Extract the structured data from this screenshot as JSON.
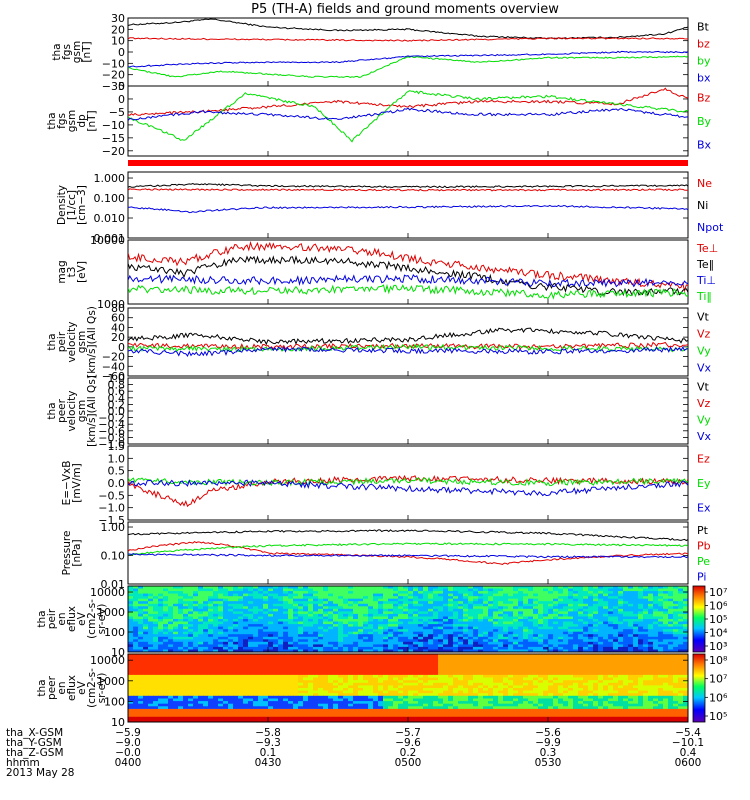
{
  "title": "P5 (TH-A) fields and ground moments overview",
  "colors": {
    "black": "#000000",
    "red": "#e00000",
    "green": "#00dd00",
    "blue": "#0000e0"
  },
  "panels": [
    {
      "id": "p1",
      "ylabel": [
        "tha",
        "fgs",
        "gsm",
        "[nT]"
      ],
      "ticks": [
        "30",
        "20",
        "10",
        "0",
        "−10",
        "−20",
        "−30"
      ],
      "log": false,
      "ylim": [
        -30,
        30
      ],
      "legend": [
        {
          "label": "Bt",
          "color": "#000000"
        },
        {
          "label": "bz",
          "color": "#e00000"
        },
        {
          "label": "by",
          "color": "#00dd00"
        },
        {
          "label": "bx",
          "color": "#0000e0"
        }
      ]
    },
    {
      "id": "p2",
      "ylabel": [
        "tha",
        "fgs",
        "gsm",
        "dp",
        "[nT]"
      ],
      "ticks": [
        "5",
        "0",
        "−5",
        "−10",
        "−15",
        "−20"
      ],
      "log": false,
      "ylim": [
        -22,
        5
      ],
      "legend": [
        {
          "label": "Bz",
          "color": "#e00000"
        },
        {
          "label": "By",
          "color": "#00dd00"
        },
        {
          "label": "Bx",
          "color": "#0000e0"
        }
      ]
    },
    {
      "id": "p3",
      "ylabel": [
        "Density",
        "[1/cc]",
        "[cm−3]"
      ],
      "ticks": [
        "1.000",
        "0.100",
        "0.010",
        "0.001"
      ],
      "log": true,
      "ylim": [
        0.001,
        2
      ],
      "legend": [
        {
          "label": "Ne",
          "color": "#e00000"
        },
        {
          "label": "Ni",
          "color": "#000000"
        },
        {
          "label": "Npot",
          "color": "#0000e0"
        }
      ]
    },
    {
      "id": "p4",
      "ylabel": [
        "mag",
        "t3",
        "[eV]"
      ],
      "ticks": [
        "10000",
        "1000"
      ],
      "log": true,
      "ylim": [
        1000,
        10000
      ],
      "legend": [
        {
          "label": "Te⊥",
          "color": "#e00000"
        },
        {
          "label": "Te‖",
          "color": "#000000"
        },
        {
          "label": "Ti⊥",
          "color": "#0000e0"
        },
        {
          "label": "Ti‖",
          "color": "#00dd00"
        }
      ]
    },
    {
      "id": "p5",
      "ylabel": [
        "tha",
        "peir",
        "velocity",
        "gsm",
        "[km/s](All Qs)"
      ],
      "ticks": [
        "80",
        "60",
        "40",
        "20",
        "0",
        "−20",
        "−40",
        "−60"
      ],
      "log": false,
      "ylim": [
        -60,
        80
      ],
      "legend": [
        {
          "label": "Vt",
          "color": "#000000"
        },
        {
          "label": "Vz",
          "color": "#e00000"
        },
        {
          "label": "Vy",
          "color": "#00dd00"
        },
        {
          "label": "Vx",
          "color": "#0000e0"
        }
      ]
    },
    {
      "id": "p6",
      "ylabel": [
        "tha",
        "peer",
        "velocity",
        "gsm",
        "[km/s](All Qs)"
      ],
      "ticks": [
        "1.0",
        "0.8",
        "0.6",
        "0.4",
        "0.2",
        "0.0",
        "−0.2",
        "−0.4",
        "−0.6",
        "−0.8",
        "−1.0"
      ],
      "log": false,
      "ylim": [
        -1,
        1
      ],
      "legend": [
        {
          "label": "Vt",
          "color": "#000000"
        },
        {
          "label": "Vz",
          "color": "#e00000"
        },
        {
          "label": "Vy",
          "color": "#00dd00"
        },
        {
          "label": "Vx",
          "color": "#0000e0"
        }
      ]
    },
    {
      "id": "p7",
      "ylabel": [
        "E=−VxB",
        "[mV/m]"
      ],
      "ticks": [
        "1.5",
        "1.0",
        "0.5",
        "0.0",
        "−0.5",
        "−1.0",
        "−1.5"
      ],
      "log": false,
      "ylim": [
        -1.5,
        1.5
      ],
      "legend": [
        {
          "label": "Ez",
          "color": "#e00000"
        },
        {
          "label": "Ey",
          "color": "#00dd00"
        },
        {
          "label": "Ex",
          "color": "#0000e0"
        }
      ]
    },
    {
      "id": "p8",
      "ylabel": [
        "Pressure",
        "[nPa]"
      ],
      "ticks": [
        "1.00",
        "0.10",
        "0.01"
      ],
      "log": true,
      "ylim": [
        0.01,
        1.5
      ],
      "legend": [
        {
          "label": "Pt",
          "color": "#000000"
        },
        {
          "label": "Pb",
          "color": "#e00000"
        },
        {
          "label": "Pe",
          "color": "#00dd00"
        },
        {
          "label": "Pi",
          "color": "#0000e0"
        }
      ]
    },
    {
      "id": "p9",
      "ylabel": [
        "tha",
        "peir",
        "en",
        "eflux",
        "eV",
        "(cm2-s-",
        "sr-eV)"
      ],
      "ticks": [
        "10000",
        "1000",
        "100",
        "10"
      ],
      "log": true,
      "ylim": [
        10,
        20000
      ],
      "cbar": [
        "10⁷",
        "10⁶",
        "10⁵",
        "10⁴",
        "10³"
      ]
    },
    {
      "id": "p10",
      "ylabel": [
        "tha",
        "peer",
        "en",
        "eflux",
        "eV",
        "(cm2-s-",
        "sr-eV)"
      ],
      "ticks": [
        "10000",
        "1000",
        "100",
        "10"
      ],
      "log": true,
      "ylim": [
        10,
        20000
      ],
      "cbar": [
        "10⁸",
        "10⁷",
        "10⁶",
        "10⁵"
      ]
    }
  ],
  "xaxis": {
    "ticks": [
      "0400",
      "0430",
      "0500",
      "0530",
      "0600"
    ],
    "rows": [
      {
        "label": "tha_X-GSM",
        "values": [
          "−5.9",
          "−5.8",
          "−5.7",
          "−5.6",
          "−5.4"
        ]
      },
      {
        "label": "tha_Y-GSM",
        "values": [
          "−9.0",
          "−9.3",
          "−9.6",
          "−9.9",
          "−10.1"
        ]
      },
      {
        "label": "tha_Z-GSM",
        "values": [
          "−0.0",
          "0.1",
          "0.2",
          "0.3",
          "0.4"
        ]
      },
      {
        "label": "hhmm",
        "values": [
          "0400",
          "0430",
          "0500",
          "0530",
          "0600"
        ]
      }
    ],
    "date": "2013 May 28"
  },
  "chart_data": {
    "type": "line",
    "title": "P5 (TH-A) fields and ground moments overview",
    "x_range": [
      "0400",
      "0600"
    ],
    "panels": [
      {
        "id": "p1",
        "series": [
          {
            "name": "Bt",
            "x": [
              "0400",
              "0410",
              "0418",
              "0430",
              "0445",
              "0500",
              "0515",
              "0530",
              "0545",
              "0555",
              "0600"
            ],
            "values": [
              24,
              26,
              29,
              22,
              19,
              20,
              14,
              12,
              13,
              16,
              22
            ]
          },
          {
            "name": "bz",
            "x": [
              "0400",
              "0430",
              "0500",
              "0530",
              "0600"
            ],
            "values": [
              12,
              11,
              10,
              12,
              12
            ]
          },
          {
            "name": "by",
            "x": [
              "0400",
              "0410",
              "0420",
              "0440",
              "0450",
              "0500",
              "0515",
              "0530",
              "0545",
              "0600"
            ],
            "values": [
              -14,
              -22,
              -17,
              -22,
              -22,
              -4,
              -9,
              -5,
              -5,
              -4
            ]
          },
          {
            "name": "bx",
            "x": [
              "0400",
              "0415",
              "0430",
              "0445",
              "0500",
              "0515",
              "0530",
              "0545",
              "0600"
            ],
            "values": [
              -13,
              -10,
              -9,
              -9,
              -4,
              -3,
              -2,
              0,
              0
            ]
          }
        ]
      },
      {
        "id": "p2",
        "series": [
          {
            "name": "Bz",
            "x": [
              "0400",
              "0415",
              "0430",
              "0445",
              "0500",
              "0515",
              "0530",
              "0545",
              "0555",
              "0600"
            ],
            "values": [
              -6,
              -5,
              -3,
              -1,
              -3,
              -1,
              -1,
              -2,
              4,
              0
            ]
          },
          {
            "name": "By",
            "x": [
              "0400",
              "0412",
              "0425",
              "0440",
              "0448",
              "0500",
              "0515",
              "0530",
              "0545",
              "0600"
            ],
            "values": [
              -7,
              -16,
              2,
              -3,
              -16,
              3,
              0,
              1,
              -2,
              -5
            ]
          },
          {
            "name": "Bx",
            "x": [
              "0400",
              "0415",
              "0430",
              "0445",
              "0500",
              "0515",
              "0530",
              "0545",
              "0600"
            ],
            "values": [
              -8,
              -5,
              -6,
              -8,
              -4,
              -6,
              -6,
              -4,
              -7
            ]
          }
        ]
      },
      {
        "id": "p3",
        "series": [
          {
            "name": "Ne",
            "x": [
              "0400",
              "0430",
              "0500",
              "0530",
              "0600"
            ],
            "values": [
              0.27,
              0.26,
              0.25,
              0.25,
              0.26
            ]
          },
          {
            "name": "Ni",
            "x": [
              "0400",
              "0415",
              "0430",
              "0500",
              "0530",
              "0600"
            ],
            "values": [
              0.35,
              0.5,
              0.4,
              0.36,
              0.38,
              0.42
            ]
          },
          {
            "name": "Npot",
            "x": [
              "0400",
              "0413",
              "0430",
              "0500",
              "0530",
              "0600"
            ],
            "values": [
              0.035,
              0.02,
              0.033,
              0.035,
              0.04,
              0.028
            ]
          }
        ]
      },
      {
        "id": "p4",
        "series": [
          {
            "name": "Te⊥",
            "x": [
              "0400",
              "0412",
              "0425",
              "0445",
              "0505",
              "0525",
              "0545",
              "0600"
            ],
            "values": [
              5500,
              4500,
              8000,
              7500,
              4500,
              3000,
              2300,
              1800
            ]
          },
          {
            "name": "Te‖",
            "x": [
              "0400",
              "0412",
              "0425",
              "0445",
              "0505",
              "0525",
              "0545",
              "0600"
            ],
            "values": [
              3800,
              3000,
              5000,
              4700,
              3300,
              2000,
              1500,
              1600
            ]
          },
          {
            "name": "Ti⊥",
            "x": [
              "0400",
              "0430",
              "0500",
              "0530",
              "0600"
            ],
            "values": [
              2500,
              2300,
              2500,
              2100,
              2200
            ]
          },
          {
            "name": "Ti‖",
            "x": [
              "0400",
              "0430",
              "0500",
              "0530",
              "0600"
            ],
            "values": [
              1700,
              1600,
              1750,
              1400,
              1500
            ]
          }
        ]
      },
      {
        "id": "p5",
        "series": [
          {
            "name": "Vt",
            "x": [
              "0400",
              "0415",
              "0430",
              "0500",
              "0520",
              "0540",
              "0600"
            ],
            "values": [
              15,
              25,
              10,
              15,
              35,
              30,
              12
            ]
          },
          {
            "name": "Vz",
            "x": [
              "0400",
              "0430",
              "0500",
              "0530",
              "0600"
            ],
            "values": [
              3,
              0,
              2,
              0,
              5
            ]
          },
          {
            "name": "Vy",
            "x": [
              "0400",
              "0430",
              "0500",
              "0530",
              "0600"
            ],
            "values": [
              -3,
              -5,
              0,
              -3,
              -5
            ]
          },
          {
            "name": "Vx",
            "x": [
              "0400",
              "0415",
              "0430",
              "0500",
              "0530",
              "0600"
            ],
            "values": [
              -8,
              -15,
              -5,
              -8,
              -10,
              -5
            ]
          }
        ]
      },
      {
        "id": "p7",
        "series": [
          {
            "name": "Ez",
            "x": [
              "0400",
              "0412",
              "0418",
              "0430",
              "0500",
              "0530",
              "0600"
            ],
            "values": [
              0.0,
              -0.9,
              -0.3,
              0.05,
              0.2,
              0.1,
              0.05
            ]
          },
          {
            "name": "Ey",
            "x": [
              "0400",
              "0430",
              "0500",
              "0530",
              "0600"
            ],
            "values": [
              0.1,
              0.0,
              0.1,
              0.0,
              0.1
            ]
          },
          {
            "name": "Ex",
            "x": [
              "0400",
              "0430",
              "0510",
              "0530",
              "0545",
              "0600"
            ],
            "values": [
              0.0,
              0.0,
              -0.3,
              -0.4,
              -0.2,
              0.0
            ]
          }
        ]
      },
      {
        "id": "p8",
        "series": [
          {
            "name": "Pt",
            "x": [
              "0400",
              "0430",
              "0500",
              "0530",
              "0545",
              "0600"
            ],
            "values": [
              0.55,
              0.7,
              0.75,
              0.6,
              0.45,
              0.35
            ]
          },
          {
            "name": "Pb",
            "x": [
              "0400",
              "0415",
              "0430",
              "0500",
              "0520",
              "0540",
              "0600"
            ],
            "values": [
              0.15,
              0.3,
              0.12,
              0.09,
              0.05,
              0.09,
              0.12
            ]
          },
          {
            "name": "Pe",
            "x": [
              "0400",
              "0430",
              "0500",
              "0530",
              "0600"
            ],
            "values": [
              0.11,
              0.22,
              0.26,
              0.25,
              0.22
            ]
          },
          {
            "name": "Pi",
            "x": [
              "0400",
              "0430",
              "0500",
              "0530",
              "0600"
            ],
            "values": [
              0.11,
              0.1,
              0.1,
              0.09,
              0.09
            ]
          }
        ]
      }
    ],
    "spectrograms": [
      {
        "id": "p9",
        "energy_range_eV": [
          10,
          20000
        ],
        "cbar_range": [
          "10³",
          "10⁷"
        ]
      },
      {
        "id": "p10",
        "energy_range_eV": [
          10,
          20000
        ],
        "cbar_range": [
          "10⁵",
          "10⁸"
        ]
      }
    ]
  }
}
